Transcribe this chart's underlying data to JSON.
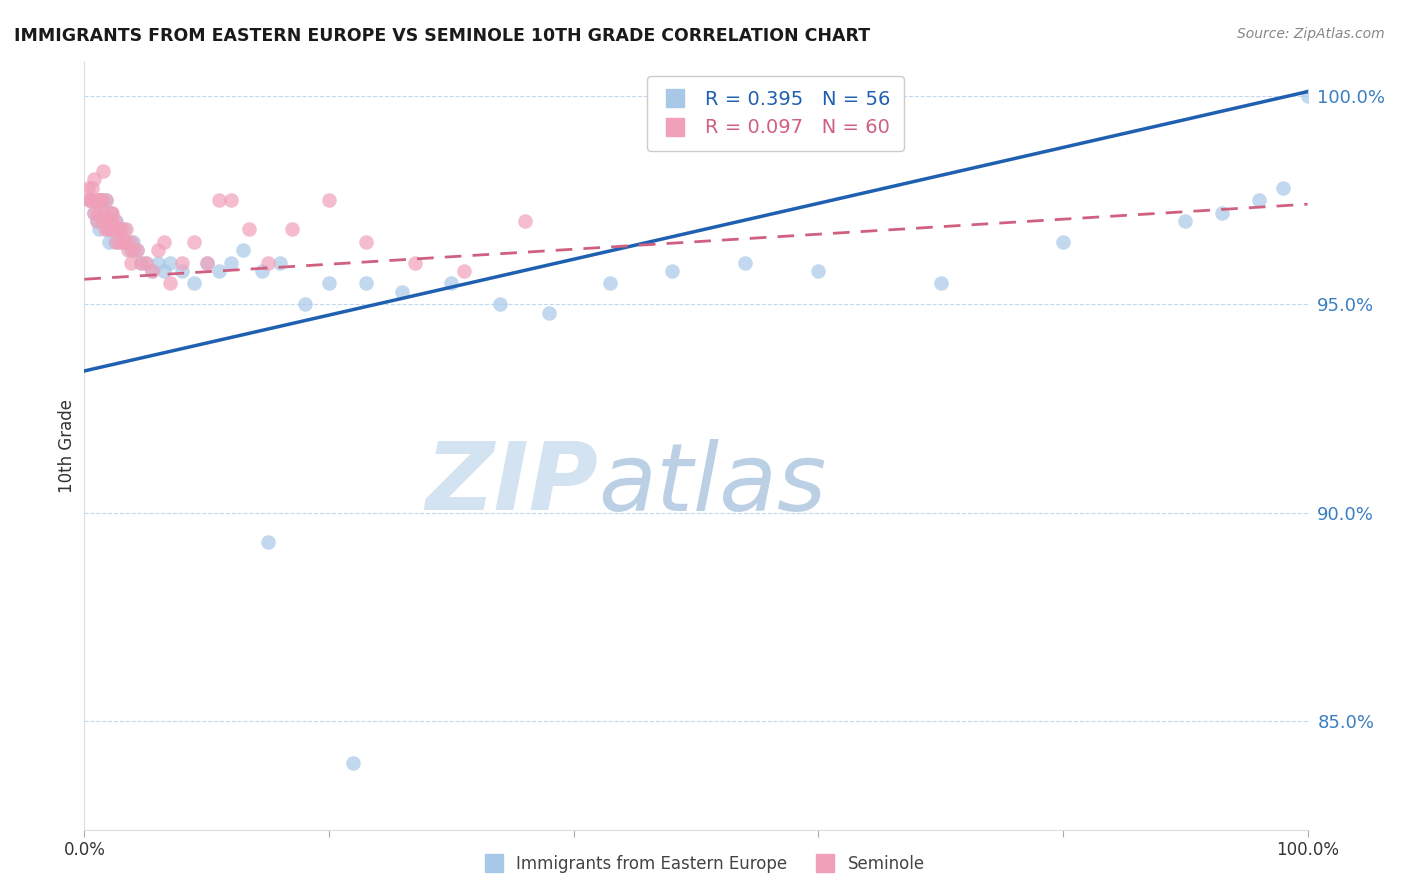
{
  "title": "IMMIGRANTS FROM EASTERN EUROPE VS SEMINOLE 10TH GRADE CORRELATION CHART",
  "source": "Source: ZipAtlas.com",
  "ylabel": "10th Grade",
  "ytick_labels": [
    "100.0%",
    "95.0%",
    "90.0%",
    "85.0%"
  ],
  "ytick_values": [
    1.0,
    0.95,
    0.9,
    0.85
  ],
  "xlim": [
    0.0,
    1.0
  ],
  "ylim": [
    0.824,
    1.008
  ],
  "legend_blue_r": "R = 0.395",
  "legend_blue_n": "N = 56",
  "legend_pink_r": "R = 0.097",
  "legend_pink_n": "N = 60",
  "legend_label_blue": "Immigrants from Eastern Europe",
  "legend_label_pink": "Seminole",
  "blue_color": "#a8c8e8",
  "pink_color": "#f0a0b8",
  "blue_line_color": "#2060b0",
  "pink_line_color": "#d06080",
  "blue_trendline_y_start": 0.934,
  "blue_trendline_y_end": 1.001,
  "pink_trendline_y_start": 0.956,
  "pink_trendline_y_end": 0.974,
  "blue_scatter_x": [
    0.005,
    0.008,
    0.01,
    0.012,
    0.013,
    0.015,
    0.016,
    0.018,
    0.019,
    0.02,
    0.021,
    0.022,
    0.023,
    0.025,
    0.026,
    0.028,
    0.03,
    0.032,
    0.035,
    0.038,
    0.04,
    0.043,
    0.046,
    0.05,
    0.055,
    0.06,
    0.065,
    0.07,
    0.08,
    0.09,
    0.1,
    0.11,
    0.12,
    0.13,
    0.145,
    0.16,
    0.18,
    0.2,
    0.23,
    0.26,
    0.3,
    0.34,
    0.38,
    0.43,
    0.48,
    0.54,
    0.6,
    0.7,
    0.8,
    0.9,
    0.93,
    0.96,
    0.98,
    1.0,
    0.15,
    0.22
  ],
  "blue_scatter_y": [
    0.975,
    0.972,
    0.97,
    0.968,
    0.975,
    0.975,
    0.972,
    0.975,
    0.968,
    0.965,
    0.97,
    0.972,
    0.968,
    0.965,
    0.97,
    0.968,
    0.965,
    0.968,
    0.965,
    0.963,
    0.965,
    0.963,
    0.96,
    0.96,
    0.958,
    0.96,
    0.958,
    0.96,
    0.958,
    0.955,
    0.96,
    0.958,
    0.96,
    0.963,
    0.958,
    0.96,
    0.95,
    0.955,
    0.955,
    0.953,
    0.955,
    0.95,
    0.948,
    0.955,
    0.958,
    0.96,
    0.958,
    0.955,
    0.965,
    0.97,
    0.972,
    0.975,
    0.978,
    1.0,
    0.893,
    0.84
  ],
  "pink_scatter_x": [
    0.003,
    0.005,
    0.007,
    0.008,
    0.009,
    0.01,
    0.011,
    0.012,
    0.013,
    0.014,
    0.015,
    0.016,
    0.017,
    0.018,
    0.019,
    0.02,
    0.021,
    0.022,
    0.023,
    0.024,
    0.025,
    0.026,
    0.027,
    0.028,
    0.03,
    0.032,
    0.034,
    0.036,
    0.038,
    0.04,
    0.043,
    0.046,
    0.05,
    0.055,
    0.06,
    0.065,
    0.07,
    0.08,
    0.09,
    0.1,
    0.11,
    0.12,
    0.135,
    0.15,
    0.17,
    0.2,
    0.23,
    0.27,
    0.31,
    0.36,
    0.004,
    0.006,
    0.008,
    0.012,
    0.015,
    0.018,
    0.022,
    0.028,
    0.033,
    0.038
  ],
  "pink_scatter_y": [
    0.978,
    0.975,
    0.975,
    0.972,
    0.975,
    0.97,
    0.972,
    0.975,
    0.975,
    0.975,
    0.97,
    0.972,
    0.968,
    0.97,
    0.968,
    0.968,
    0.97,
    0.97,
    0.972,
    0.968,
    0.97,
    0.965,
    0.968,
    0.965,
    0.968,
    0.965,
    0.968,
    0.963,
    0.965,
    0.963,
    0.963,
    0.96,
    0.96,
    0.958,
    0.963,
    0.965,
    0.955,
    0.96,
    0.965,
    0.96,
    0.975,
    0.975,
    0.968,
    0.96,
    0.968,
    0.975,
    0.965,
    0.96,
    0.958,
    0.97,
    0.975,
    0.978,
    0.98,
    0.975,
    0.982,
    0.975,
    0.972,
    0.968,
    0.965,
    0.96
  ]
}
